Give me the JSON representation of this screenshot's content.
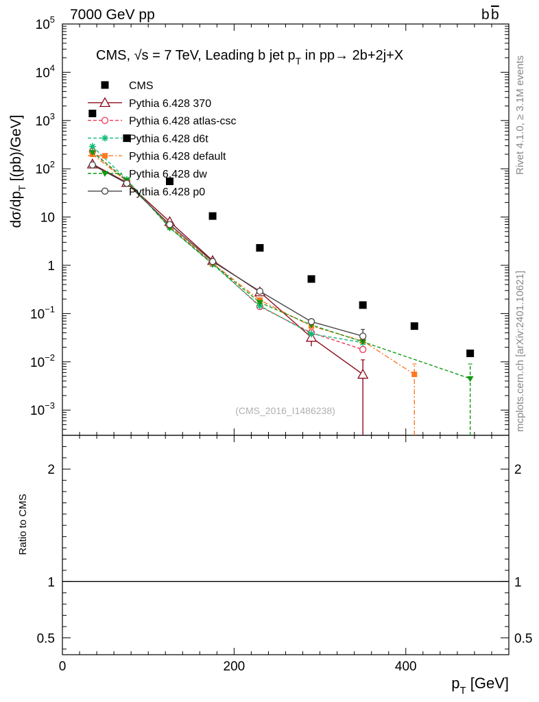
{
  "header": {
    "left": "7000 GeV pp",
    "right": "b",
    "right_bar": "b"
  },
  "side_labels": {
    "rivet": "Rivet 4.1.0, ≥ 3.1M events",
    "mcplots": "mcplots.cern.ch [arXiv:2401.10621]"
  },
  "chart_data": {
    "type": "scatter",
    "title": "CMS, √s = 7 TeV, Leading b jet p_T in pp→ 2b+2j+X",
    "title_parts": {
      "a": "CMS, ",
      "sqrt": "√",
      "b": "s = 7 TeV, Leading b jet p",
      "sub": "T",
      "c": " in pp→  2b+2j+X"
    },
    "analysis_id": "(CMS_2016_I1486238)",
    "xlabel": "p_T [GeV]",
    "xlabel_parts": {
      "a": "p",
      "sub": "T",
      "b": " [GeV]"
    },
    "ylabel": "dσ/dp_T [(pb)/GeV]",
    "ylabel_parts": {
      "a": "dσ/dp",
      "sub": "T",
      "b": "  [(pb)/GeV]"
    },
    "ratio_ylabel": "Ratio to CMS",
    "xlim": [
      0,
      520
    ],
    "ylim": [
      0.0003,
      100000
    ],
    "yscale": "log",
    "ratio_ylim": [
      0.35,
      2.3
    ],
    "x_ticks": [
      {
        "v": 0,
        "label": "0"
      },
      {
        "v": 200,
        "label": "200"
      },
      {
        "v": 400,
        "label": "400"
      }
    ],
    "y_ticks": [
      {
        "v": 0.001,
        "label": "10",
        "sup": "−3"
      },
      {
        "v": 0.01,
        "label": "10",
        "sup": "−2"
      },
      {
        "v": 0.1,
        "label": "10",
        "sup": "−1"
      },
      {
        "v": 1,
        "label": "1",
        "sup": ""
      },
      {
        "v": 10,
        "label": "10",
        "sup": ""
      },
      {
        "v": 100,
        "label": "10",
        "sup": "2"
      },
      {
        "v": 1000,
        "label": "10",
        "sup": "3"
      },
      {
        "v": 10000,
        "label": "10",
        "sup": "4"
      },
      {
        "v": 100000,
        "label": "10",
        "sup": "5"
      }
    ],
    "ratio_ticks": [
      {
        "v": 0.5,
        "label": "0.5"
      },
      {
        "v": 1,
        "label": "1"
      },
      {
        "v": 2,
        "label": "2"
      }
    ],
    "series": [
      {
        "name": "CMS",
        "style": "data",
        "color": "#000000",
        "marker": "square",
        "x": [
          35,
          75,
          125,
          175,
          230,
          290,
          350,
          410,
          475
        ],
        "y": [
          1400,
          430,
          55,
          10.5,
          2.3,
          0.52,
          0.15,
          0.055,
          0.015
        ]
      },
      {
        "name": "Pythia 6.428 370",
        "style": "solid",
        "color": "#8b0a1a",
        "marker": "triangle-open",
        "x": [
          35,
          75,
          125,
          175,
          230,
          290,
          350
        ],
        "y": [
          125,
          52,
          8,
          1.25,
          0.28,
          0.032,
          0.0055
        ],
        "err_lo": [
          null,
          null,
          null,
          null,
          null,
          0.021,
          0.0001
        ],
        "err_hi": [
          null,
          null,
          null,
          null,
          null,
          0.046,
          0.011
        ]
      },
      {
        "name": "Pythia 6.428 atlas-csc",
        "style": "dashed",
        "color": "#ee3355",
        "marker": "circle-open",
        "x": [
          35,
          75,
          125,
          175,
          230,
          290,
          350
        ],
        "y": [
          230,
          55,
          6.5,
          1.1,
          0.14,
          0.04,
          0.018
        ]
      },
      {
        "name": "Pythia 6.428 d6t",
        "style": "dashed",
        "color": "#11bb77",
        "marker": "asterisk",
        "x": [
          35,
          75,
          125,
          175,
          230,
          290,
          350
        ],
        "y": [
          290,
          60,
          6,
          1.05,
          0.145,
          0.038,
          0.025
        ]
      },
      {
        "name": "Pythia 6.428 default",
        "style": "dashdot",
        "color": "#ff7722",
        "marker": "square-filled",
        "x": [
          35,
          75,
          125,
          175,
          230,
          290,
          350,
          410
        ],
        "y": [
          200,
          55,
          6.5,
          1.1,
          0.19,
          0.055,
          0.027,
          0.0055
        ],
        "err_lo": [
          null,
          null,
          null,
          null,
          null,
          null,
          null,
          0.0001
        ],
        "err_hi": [
          null,
          null,
          null,
          null,
          null,
          null,
          null,
          0.009
        ]
      },
      {
        "name": "Pythia 6.428 dw",
        "style": "dashed",
        "color": "#119911",
        "marker": "triangle-down",
        "x": [
          35,
          75,
          125,
          175,
          230,
          290,
          350,
          475
        ],
        "y": [
          220,
          58,
          6,
          1.08,
          0.17,
          0.058,
          0.026,
          0.0045
        ],
        "err_lo": [
          null,
          null,
          null,
          null,
          null,
          null,
          null,
          0.0001
        ],
        "err_hi": [
          null,
          null,
          null,
          null,
          null,
          null,
          null,
          0.009
        ]
      },
      {
        "name": "Pythia 6.428 p0",
        "style": "solid",
        "color": "#444444",
        "marker": "circle-open",
        "x": [
          35,
          75,
          125,
          175,
          230,
          290,
          350
        ],
        "y": [
          120,
          50,
          7,
          1.2,
          0.29,
          0.068,
          0.034
        ],
        "err_lo": [
          null,
          null,
          null,
          null,
          null,
          null,
          0.026
        ],
        "err_hi": [
          null,
          null,
          null,
          null,
          null,
          null,
          0.047
        ]
      }
    ]
  }
}
